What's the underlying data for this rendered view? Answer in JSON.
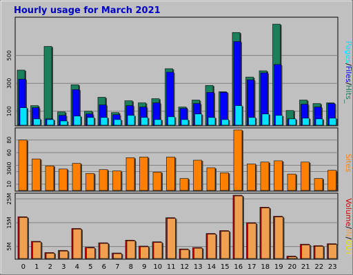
{
  "title": "Hourly usage for March 2021",
  "colors": {
    "frame_bg": "#c0c0c0",
    "plot_bg": "#c0c0c0",
    "title": "#0000c0",
    "hits": "#1a7f5a",
    "files": "#0000ff",
    "pages": "#00e0ff",
    "sites": "#ff8000",
    "volume": "#d00000",
    "in": "#f0a050",
    "out": "#f0e000"
  },
  "chart_data": [
    {
      "type": "bar",
      "panel": "hits-files-pages",
      "categories": [
        "0",
        "1",
        "2",
        "3",
        "4",
        "5",
        "6",
        "7",
        "8",
        "9",
        "10",
        "11",
        "12",
        "13",
        "14",
        "15",
        "16",
        "17",
        "18",
        "19",
        "20",
        "21",
        "22",
        "23"
      ],
      "series": [
        {
          "name": "Hits",
          "values": [
            395,
            140,
            565,
            95,
            290,
            100,
            200,
            90,
            175,
            160,
            190,
            405,
            130,
            180,
            285,
            240,
            665,
            345,
            390,
            725,
            105,
            180,
            155,
            160
          ]
        },
        {
          "name": "Files",
          "values": [
            330,
            125,
            45,
            70,
            255,
            80,
            145,
            75,
            140,
            130,
            160,
            380,
            120,
            155,
            235,
            235,
            600,
            325,
            375,
            435,
            45,
            150,
            130,
            155
          ]
        },
        {
          "name": "Pages",
          "values": [
            125,
            45,
            40,
            30,
            65,
            55,
            55,
            40,
            70,
            55,
            40,
            60,
            40,
            80,
            55,
            40,
            140,
            55,
            80,
            70,
            45,
            50,
            45,
            50
          ]
        }
      ],
      "ylim": [
        0,
        760
      ],
      "yticks": [
        100,
        300,
        500
      ],
      "legend": [
        "Pages",
        "/",
        "Files",
        "/",
        "Hits",
        "_"
      ],
      "legend_position": "right"
    },
    {
      "type": "bar",
      "panel": "sites",
      "categories": [
        "0",
        "1",
        "2",
        "3",
        "4",
        "5",
        "6",
        "7",
        "8",
        "9",
        "10",
        "11",
        "12",
        "13",
        "14",
        "15",
        "16",
        "17",
        "18",
        "19",
        "20",
        "21",
        "22",
        "23"
      ],
      "series": [
        {
          "name": "Sites",
          "values": [
            80,
            50,
            39,
            34,
            43,
            27,
            33,
            31,
            52,
            53,
            29,
            53,
            19,
            48,
            36,
            28,
            96,
            42,
            45,
            47,
            26,
            45,
            19,
            32
          ]
        }
      ],
      "ylim": [
        0,
        96
      ],
      "yticks": [
        10,
        30,
        40,
        60,
        80
      ],
      "legend": [
        "Sites"
      ],
      "legend_position": "right"
    },
    {
      "type": "bar",
      "panel": "volume",
      "categories": [
        "0",
        "1",
        "2",
        "3",
        "4",
        "5",
        "6",
        "7",
        "8",
        "9",
        "10",
        "11",
        "12",
        "13",
        "14",
        "15",
        "16",
        "17",
        "18",
        "19",
        "20",
        "21",
        "22",
        "23"
      ],
      "series": [
        {
          "name": "Volume",
          "values": [
            17.5,
            7.2,
            2.5,
            3.4,
            12.6,
            4.7,
            6.6,
            2.3,
            7.7,
            5.2,
            7.0,
            17.1,
            4.0,
            4.6,
            10.5,
            11.7,
            26.5,
            15.0,
            21.5,
            17.7,
            1.0,
            6.0,
            5.4,
            6.2
          ]
        }
      ],
      "ylim": [
        0,
        26.5
      ],
      "yticks": [
        5,
        15,
        25
      ],
      "ytick_labels": [
        "5M",
        "15M",
        "25M"
      ],
      "legend": [
        "Volume",
        "/",
        "IN",
        "/",
        "OUT"
      ],
      "legend_position": "right"
    }
  ]
}
